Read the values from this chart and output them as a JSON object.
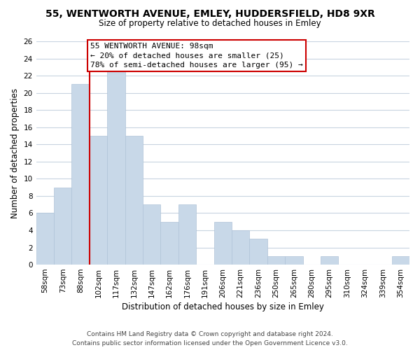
{
  "title": "55, WENTWORTH AVENUE, EMLEY, HUDDERSFIELD, HD8 9XR",
  "subtitle": "Size of property relative to detached houses in Emley",
  "xlabel": "Distribution of detached houses by size in Emley",
  "ylabel": "Number of detached properties",
  "bar_labels": [
    "58sqm",
    "73sqm",
    "88sqm",
    "102sqm",
    "117sqm",
    "132sqm",
    "147sqm",
    "162sqm",
    "176sqm",
    "191sqm",
    "206sqm",
    "221sqm",
    "236sqm",
    "250sqm",
    "265sqm",
    "280sqm",
    "295sqm",
    "310sqm",
    "324sqm",
    "339sqm",
    "354sqm"
  ],
  "bar_values": [
    6,
    9,
    21,
    15,
    23,
    15,
    7,
    5,
    7,
    0,
    5,
    4,
    3,
    1,
    1,
    0,
    1,
    0,
    0,
    0,
    1
  ],
  "bar_color": "#c8d8e8",
  "bar_edge_color": "#b0c4d8",
  "vline_x": 2.5,
  "vline_color": "#cc0000",
  "ylim": [
    0,
    26
  ],
  "yticks": [
    0,
    2,
    4,
    6,
    8,
    10,
    12,
    14,
    16,
    18,
    20,
    22,
    24,
    26
  ],
  "annotation_title": "55 WENTWORTH AVENUE: 98sqm",
  "annotation_line1": "← 20% of detached houses are smaller (25)",
  "annotation_line2": "78% of semi-detached houses are larger (95) →",
  "annotation_box_color": "#ffffff",
  "annotation_box_edge": "#cc0000",
  "footer_line1": "Contains HM Land Registry data © Crown copyright and database right 2024.",
  "footer_line2": "Contains public sector information licensed under the Open Government Licence v3.0.",
  "background_color": "#ffffff",
  "grid_color": "#c8d4e0",
  "title_fontsize": 10,
  "subtitle_fontsize": 8.5,
  "tick_fontsize": 7.5,
  "axis_label_fontsize": 8.5,
  "annotation_fontsize": 8.0,
  "footer_fontsize": 6.5
}
